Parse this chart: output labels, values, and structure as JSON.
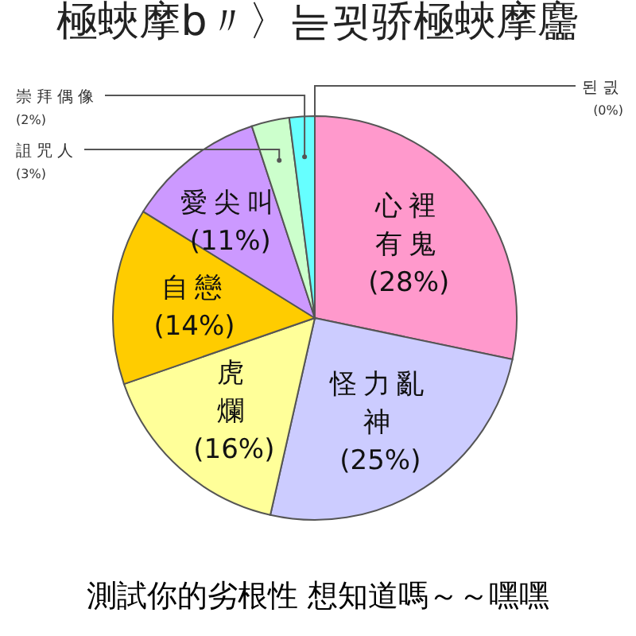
{
  "chart_data": {
    "type": "pie",
    "title": "極蛺摩b〃〉늗꾓骄極蛺摩麢",
    "categories": [
      "된긠",
      "心裡有鬼",
      "怪力亂神",
      "虎爛",
      "自戀",
      "愛尖叫",
      "詛咒人",
      "崇拜偶像"
    ],
    "values": [
      0,
      28,
      25,
      16,
      14,
      11,
      3,
      2
    ],
    "value_labels": [
      "(0%)",
      "(28%)",
      "(25%)",
      "(16%)",
      "(14%)",
      "(11%)",
      "(3%)",
      "(2%)"
    ],
    "colors": [
      "#ff6666",
      "#ff99cc",
      "#ccccff",
      "#ffff99",
      "#ffcc00",
      "#cc99ff",
      "#ccffcc",
      "#66ffff"
    ],
    "annotations": [
      "測試你的劣根性 想知道嗎～～嘿嘿"
    ]
  }
}
